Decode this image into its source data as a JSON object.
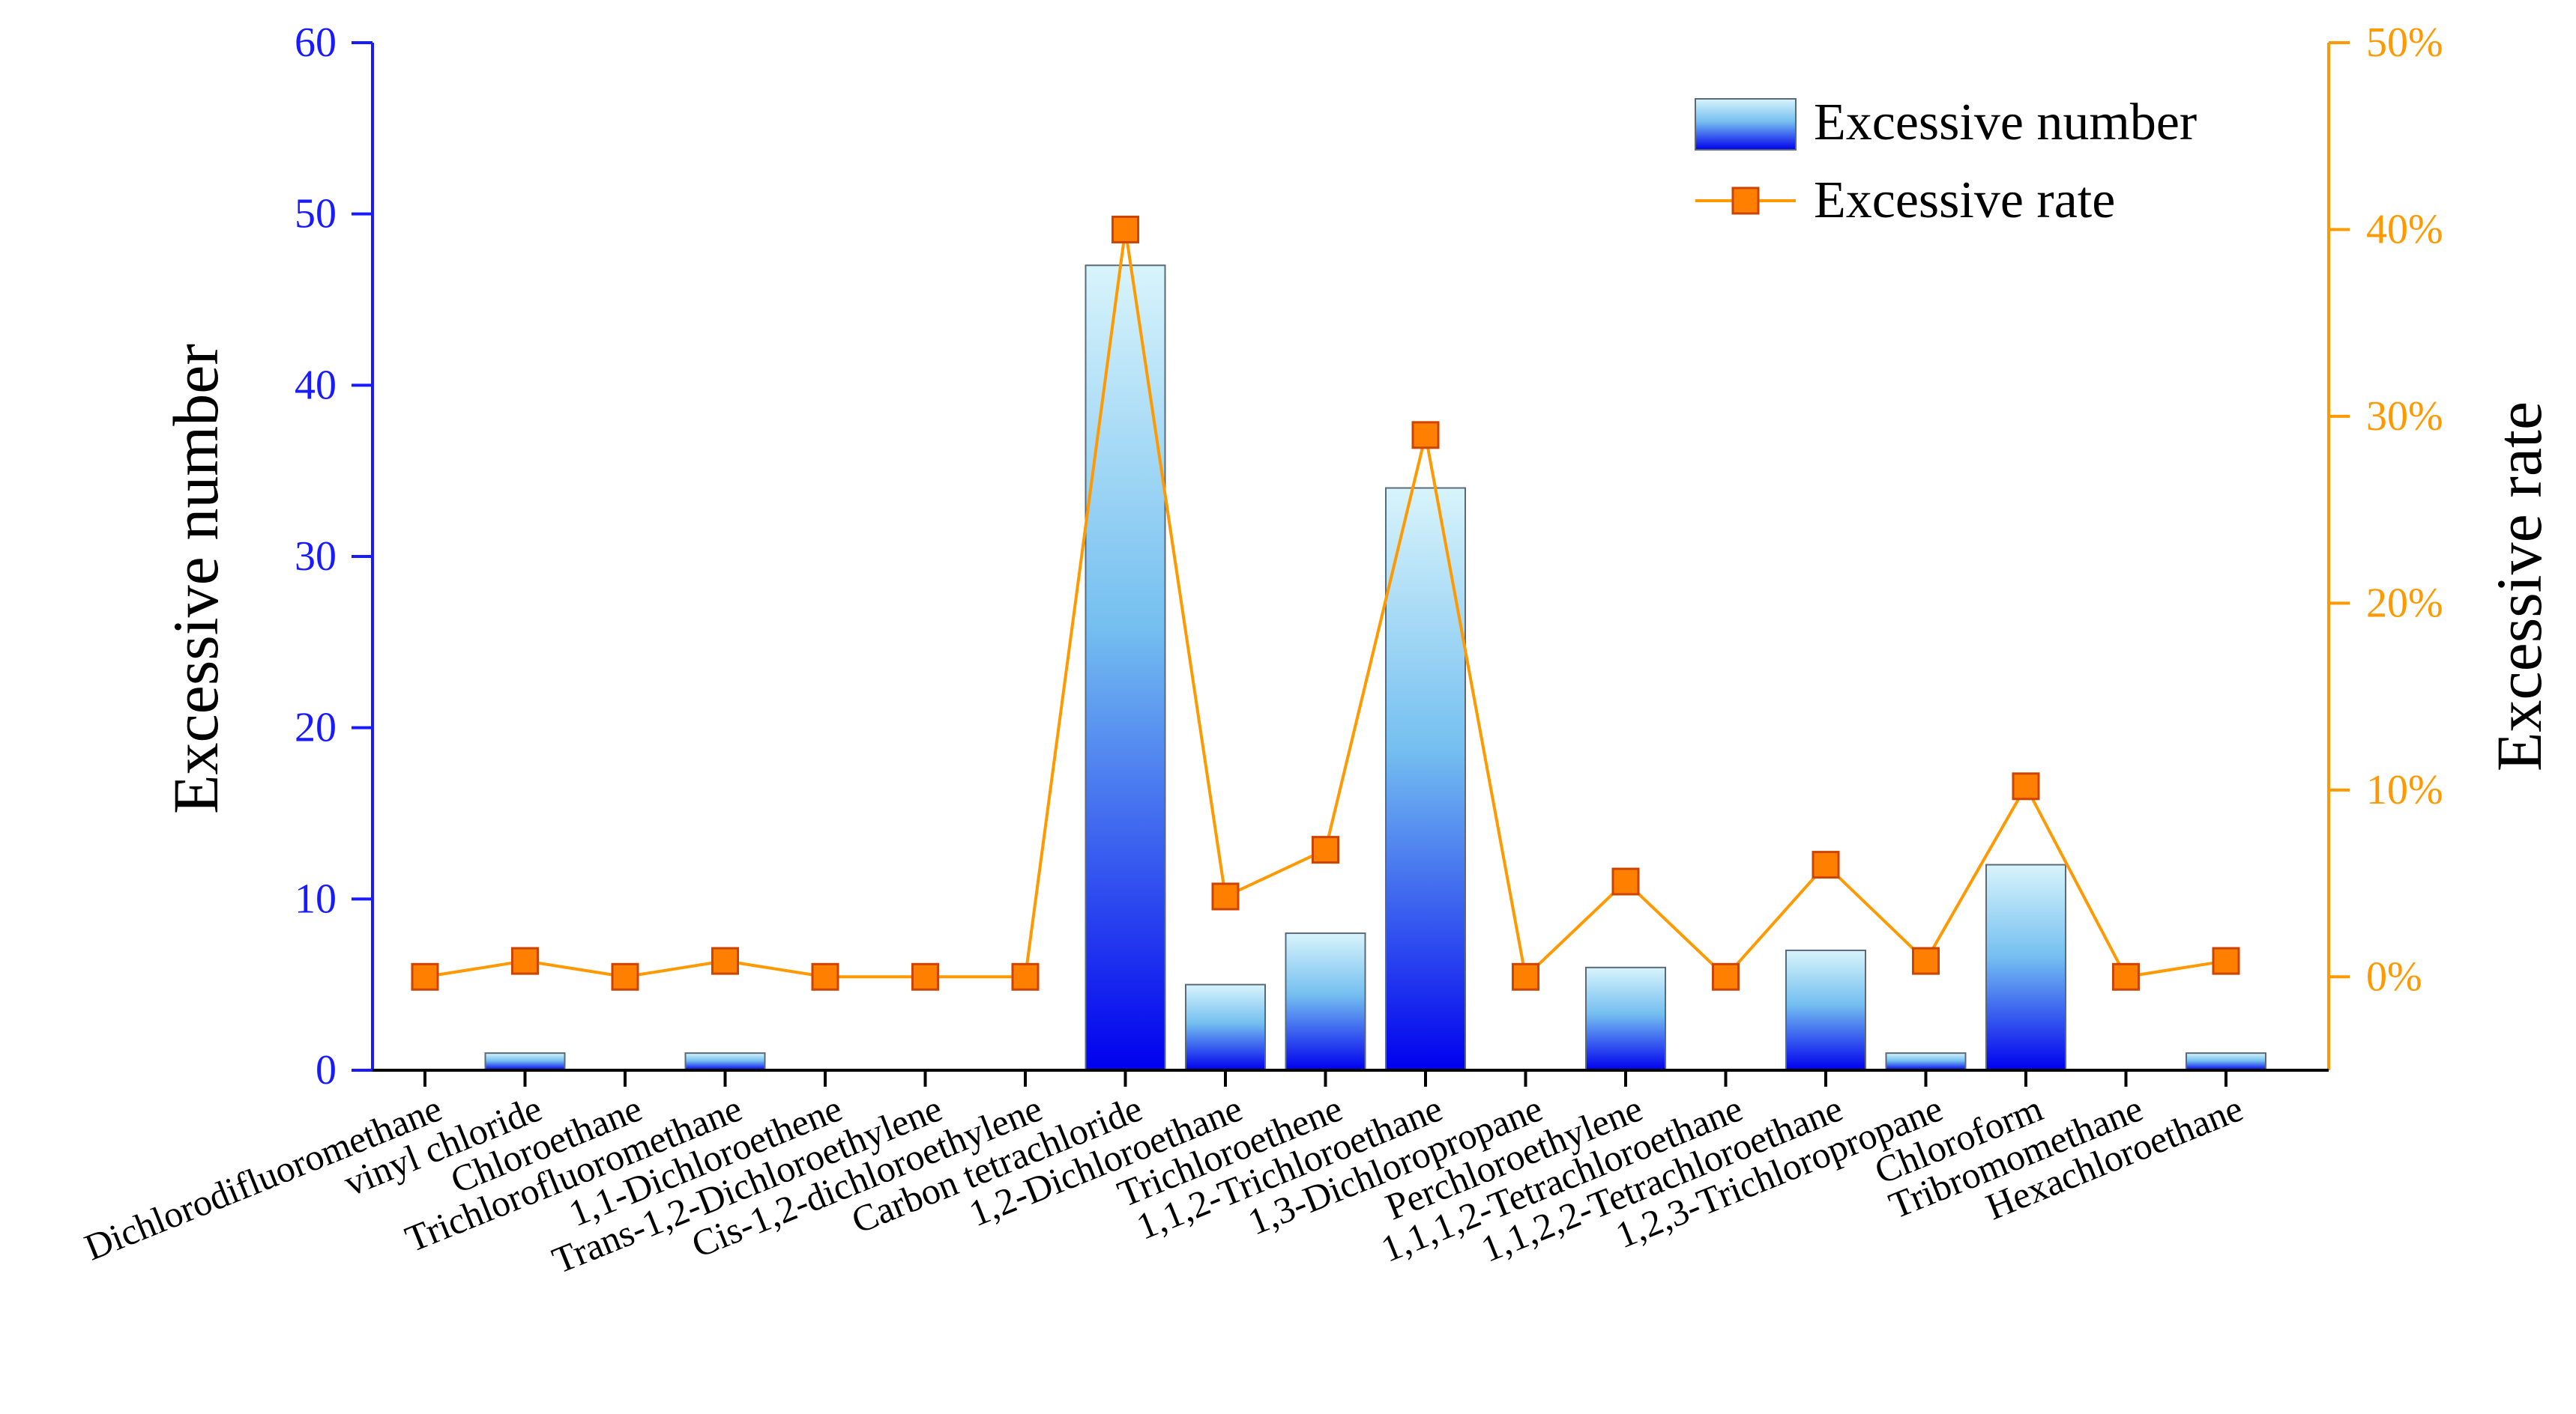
{
  "chart_data": {
    "type": "bar+line",
    "categories": [
      "Dichlorodifluoromethane",
      "vinyl chloride",
      "Chloroethane",
      "Trichlorofluoromethane",
      "1,1-Dichloroethene",
      "Trans-1,2-Dichloroethylene",
      "Cis-1,2-dichloroethylene",
      "Carbon tetrachloride",
      "1,2-Dichloroethane",
      "Trichloroethene",
      "1,1,2-Trichloroethane",
      "1,3-Dichloropropane",
      "Perchloroethylene",
      "1,1,1,2-Tetrachloroethane",
      "1,1,2,2-Tetrachloroethane",
      "1,2,3-Trichloropropane",
      "Chloroform",
      "Tribromomethane",
      "Hexachloroethane"
    ],
    "series": [
      {
        "name": "Excessive number",
        "type": "bar",
        "axis": "left",
        "values": [
          0,
          1,
          0,
          1,
          0,
          0,
          0,
          47,
          5,
          8,
          34,
          0,
          6,
          0,
          7,
          1,
          12,
          0,
          1
        ]
      },
      {
        "name": "Excessive rate",
        "type": "line",
        "axis": "right",
        "values": [
          0,
          0.85,
          0,
          0.85,
          0,
          0,
          0,
          40,
          4.3,
          6.8,
          29,
          0,
          5.1,
          0,
          6,
          0.85,
          10.2,
          0,
          0.85
        ]
      }
    ],
    "left_axis": {
      "label": "Excessive number",
      "ylim": [
        0,
        60
      ],
      "ticks": [
        0,
        10,
        20,
        30,
        40,
        50,
        60
      ],
      "tick_labels": [
        "0",
        "10",
        "20",
        "30",
        "40",
        "50",
        "60"
      ]
    },
    "right_axis": {
      "label": "Excessive rate",
      "ylim": [
        -5,
        50
      ],
      "ticks": [
        0,
        10,
        20,
        30,
        40,
        50
      ],
      "tick_labels": [
        "0%",
        "10%",
        "20%",
        "30%",
        "40%",
        "50%"
      ]
    },
    "legend": {
      "position": "top-right",
      "entries": [
        "Excessive number",
        "Excessive rate"
      ]
    },
    "grid": false
  },
  "colors": {
    "left_axis": "#1a1aff",
    "right_axis": "#ff9900",
    "bar_top": "#d8f4fb",
    "bar_mid": "#74bff0",
    "bar_bottom": "#0000ee",
    "bar_stroke": "#5a6a7a",
    "line": "#ff9900",
    "marker_fill": "#ff7f00",
    "marker_stroke": "#cc4400",
    "text": "#000000"
  }
}
